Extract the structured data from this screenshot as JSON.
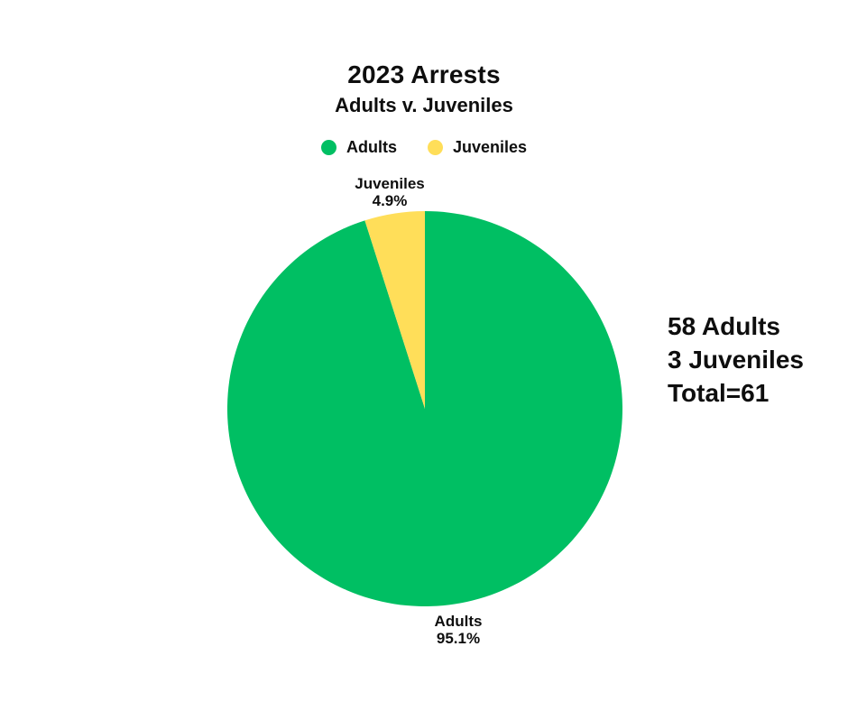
{
  "page": {
    "background": "#ffffff",
    "text_color": "#0e0e0e"
  },
  "chart_data": {
    "type": "pie",
    "title": "2023 Arrests",
    "subtitle": "Adults v. Juveniles",
    "categories": [
      "Adults",
      "Juveniles"
    ],
    "values": [
      58,
      3
    ],
    "total": 61,
    "percent_labels": [
      "95.1%",
      "4.9%"
    ],
    "colors": [
      "#00BF63",
      "#FFDE59"
    ],
    "legend_position": "top",
    "start_angle_deg": 0,
    "direction": "clockwise",
    "slice_labels": [
      {
        "name": "Adults",
        "percent": "95.1%"
      },
      {
        "name": "Juveniles",
        "percent": "4.9%"
      }
    ]
  },
  "annotation": {
    "lines": [
      "58 Adults",
      "3 Juveniles",
      "Total=61"
    ]
  }
}
